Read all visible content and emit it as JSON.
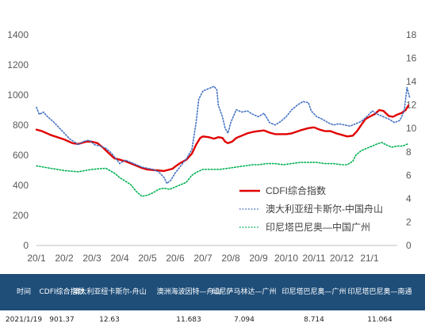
{
  "chart_data": {
    "type": "line",
    "title": "",
    "x_tick_labels": [
      "20/1",
      "20/2",
      "20/3",
      "20/4",
      "20/5",
      "20/6",
      "20/7",
      "20/8",
      "20/9",
      "20/10",
      "20/11",
      "20/12",
      "21/1"
    ],
    "y_left": {
      "min": 0,
      "max": 1400,
      "ticks": [
        "0",
        "200",
        "400",
        "600",
        "800",
        "1000",
        "1200",
        "1400"
      ]
    },
    "y_right": {
      "min": 0,
      "max": 18,
      "ticks": [
        "0",
        "2",
        "4",
        "6",
        "8",
        "10",
        "12",
        "14",
        "16",
        "18"
      ]
    },
    "legend_position": "bottom-right-inside",
    "gridlines": false,
    "series": [
      {
        "name": "CDFI综合指数",
        "axis": "left",
        "style": "solid",
        "color": "#e00000",
        "points": [
          [
            0.0,
            770
          ],
          [
            0.2,
            760
          ],
          [
            0.5,
            735
          ],
          [
            1.0,
            705
          ],
          [
            1.3,
            680
          ],
          [
            1.5,
            675
          ],
          [
            1.8,
            690
          ],
          [
            2.0,
            690
          ],
          [
            2.2,
            680
          ],
          [
            2.4,
            650
          ],
          [
            2.6,
            615
          ],
          [
            2.8,
            580
          ],
          [
            3.0,
            570
          ],
          [
            3.2,
            560
          ],
          [
            3.4,
            545
          ],
          [
            3.6,
            530
          ],
          [
            3.8,
            515
          ],
          [
            4.0,
            505
          ],
          [
            4.3,
            500
          ],
          [
            4.6,
            495
          ],
          [
            4.9,
            510
          ],
          [
            5.0,
            525
          ],
          [
            5.2,
            550
          ],
          [
            5.4,
            570
          ],
          [
            5.6,
            610
          ],
          [
            5.75,
            670
          ],
          [
            5.9,
            715
          ],
          [
            6.0,
            725
          ],
          [
            6.2,
            720
          ],
          [
            6.4,
            710
          ],
          [
            6.55,
            720
          ],
          [
            6.7,
            715
          ],
          [
            6.8,
            690
          ],
          [
            6.9,
            680
          ],
          [
            7.05,
            690
          ],
          [
            7.2,
            715
          ],
          [
            7.4,
            730
          ],
          [
            7.6,
            745
          ],
          [
            7.8,
            755
          ],
          [
            8.0,
            760
          ],
          [
            8.2,
            765
          ],
          [
            8.4,
            750
          ],
          [
            8.6,
            740
          ],
          [
            8.8,
            740
          ],
          [
            9.0,
            740
          ],
          [
            9.2,
            745
          ],
          [
            9.5,
            765
          ],
          [
            9.8,
            780
          ],
          [
            10.0,
            785
          ],
          [
            10.2,
            770
          ],
          [
            10.4,
            760
          ],
          [
            10.6,
            760
          ],
          [
            10.8,
            745
          ],
          [
            11.0,
            735
          ],
          [
            11.2,
            725
          ],
          [
            11.4,
            730
          ],
          [
            11.55,
            760
          ],
          [
            11.7,
            800
          ],
          [
            11.85,
            840
          ],
          [
            12.0,
            855
          ],
          [
            12.2,
            875
          ],
          [
            12.35,
            900
          ],
          [
            12.5,
            895
          ],
          [
            12.7,
            860
          ],
          [
            12.85,
            855
          ],
          [
            13.0,
            870
          ],
          [
            13.15,
            880
          ],
          [
            13.3,
            900
          ],
          [
            13.4,
            930
          ]
        ]
      },
      {
        "name": "澳大利亚纽卡斯尔-中国舟山",
        "axis": "right",
        "style": "dotted",
        "color": "#4472c4",
        "points": [
          [
            0.0,
            11.8
          ],
          [
            0.1,
            11.2
          ],
          [
            0.25,
            11.4
          ],
          [
            0.4,
            11.0
          ],
          [
            0.6,
            10.6
          ],
          [
            0.8,
            10.1
          ],
          [
            1.0,
            9.6
          ],
          [
            1.2,
            9.1
          ],
          [
            1.4,
            8.8
          ],
          [
            1.5,
            8.6
          ],
          [
            1.7,
            8.9
          ],
          [
            1.9,
            9.0
          ],
          [
            2.1,
            8.6
          ],
          [
            2.3,
            8.5
          ],
          [
            2.5,
            8.3
          ],
          [
            2.7,
            7.9
          ],
          [
            2.9,
            7.3
          ],
          [
            3.0,
            7.0
          ],
          [
            3.2,
            7.3
          ],
          [
            3.4,
            7.1
          ],
          [
            3.6,
            6.9
          ],
          [
            3.8,
            6.7
          ],
          [
            4.0,
            6.6
          ],
          [
            4.2,
            6.5
          ],
          [
            4.4,
            6.3
          ],
          [
            4.6,
            5.8
          ],
          [
            4.7,
            5.3
          ],
          [
            4.85,
            5.6
          ],
          [
            5.0,
            6.2
          ],
          [
            5.2,
            6.8
          ],
          [
            5.4,
            7.4
          ],
          [
            5.6,
            8.2
          ],
          [
            5.75,
            10.5
          ],
          [
            5.85,
            12.5
          ],
          [
            6.0,
            13.2
          ],
          [
            6.2,
            13.4
          ],
          [
            6.4,
            13.6
          ],
          [
            6.5,
            13.3
          ],
          [
            6.55,
            12.0
          ],
          [
            6.7,
            11.0
          ],
          [
            6.8,
            10.0
          ],
          [
            6.9,
            9.6
          ],
          [
            7.0,
            10.5
          ],
          [
            7.2,
            11.6
          ],
          [
            7.4,
            11.4
          ],
          [
            7.6,
            11.5
          ],
          [
            7.8,
            11.2
          ],
          [
            8.0,
            11.0
          ],
          [
            8.2,
            11.3
          ],
          [
            8.4,
            10.5
          ],
          [
            8.6,
            10.3
          ],
          [
            8.8,
            10.6
          ],
          [
            9.0,
            11.0
          ],
          [
            9.2,
            11.6
          ],
          [
            9.4,
            12.0
          ],
          [
            9.6,
            12.3
          ],
          [
            9.8,
            12.2
          ],
          [
            9.9,
            11.5
          ],
          [
            10.1,
            11.0
          ],
          [
            10.3,
            10.8
          ],
          [
            10.5,
            10.5
          ],
          [
            10.7,
            10.3
          ],
          [
            10.9,
            10.4
          ],
          [
            11.1,
            10.3
          ],
          [
            11.3,
            10.2
          ],
          [
            11.5,
            10.4
          ],
          [
            11.7,
            10.6
          ],
          [
            11.9,
            11.0
          ],
          [
            12.1,
            11.5
          ],
          [
            12.3,
            11.2
          ],
          [
            12.5,
            11.0
          ],
          [
            12.7,
            10.8
          ],
          [
            12.9,
            10.5
          ],
          [
            13.1,
            10.7
          ],
          [
            13.25,
            11.5
          ],
          [
            13.35,
            13.5
          ],
          [
            13.45,
            12.6
          ]
        ]
      },
      {
        "name": "印尼塔巴尼奥—中国广州",
        "axis": "right",
        "style": "dotted",
        "color": "#00b050",
        "points": [
          [
            0.0,
            6.8
          ],
          [
            0.5,
            6.6
          ],
          [
            1.0,
            6.4
          ],
          [
            1.5,
            6.3
          ],
          [
            2.0,
            6.5
          ],
          [
            2.5,
            6.6
          ],
          [
            2.8,
            6.2
          ],
          [
            3.0,
            5.8
          ],
          [
            3.2,
            5.5
          ],
          [
            3.4,
            5.2
          ],
          [
            3.6,
            4.6
          ],
          [
            3.8,
            4.2
          ],
          [
            4.0,
            4.3
          ],
          [
            4.2,
            4.5
          ],
          [
            4.4,
            4.8
          ],
          [
            4.6,
            4.9
          ],
          [
            4.8,
            4.8
          ],
          [
            5.0,
            5.0
          ],
          [
            5.2,
            5.2
          ],
          [
            5.4,
            5.4
          ],
          [
            5.6,
            6.0
          ],
          [
            5.8,
            6.3
          ],
          [
            6.0,
            6.5
          ],
          [
            6.3,
            6.5
          ],
          [
            6.6,
            6.5
          ],
          [
            6.9,
            6.6
          ],
          [
            7.2,
            6.7
          ],
          [
            7.5,
            6.8
          ],
          [
            7.8,
            6.9
          ],
          [
            8.0,
            6.9
          ],
          [
            8.3,
            7.0
          ],
          [
            8.6,
            7.0
          ],
          [
            8.9,
            6.9
          ],
          [
            9.2,
            7.0
          ],
          [
            9.5,
            7.1
          ],
          [
            9.8,
            7.1
          ],
          [
            10.1,
            7.1
          ],
          [
            10.4,
            7.0
          ],
          [
            10.7,
            7.0
          ],
          [
            11.0,
            6.9
          ],
          [
            11.2,
            6.9
          ],
          [
            11.4,
            7.2
          ],
          [
            11.5,
            7.7
          ],
          [
            11.7,
            8.1
          ],
          [
            11.9,
            8.3
          ],
          [
            12.1,
            8.5
          ],
          [
            12.3,
            8.7
          ],
          [
            12.45,
            8.8
          ],
          [
            12.6,
            8.6
          ],
          [
            12.8,
            8.4
          ],
          [
            13.0,
            8.5
          ],
          [
            13.2,
            8.5
          ],
          [
            13.4,
            8.7
          ]
        ]
      }
    ]
  },
  "table": {
    "headers": [
      "时间",
      "CDFI综合指数",
      "澳大利亚纽卡斯尔-舟山",
      "澳洲海波因特—舟山",
      "印尼萨马林达—广州",
      "印尼塔巴尼奥—广州",
      "印尼塔巴尼奥—南通"
    ],
    "row": [
      "2021/1/19",
      "901.37",
      "12.63",
      "11.683",
      "7.094",
      "8.714",
      "11.064"
    ],
    "header_bg": "#1f4e79"
  }
}
